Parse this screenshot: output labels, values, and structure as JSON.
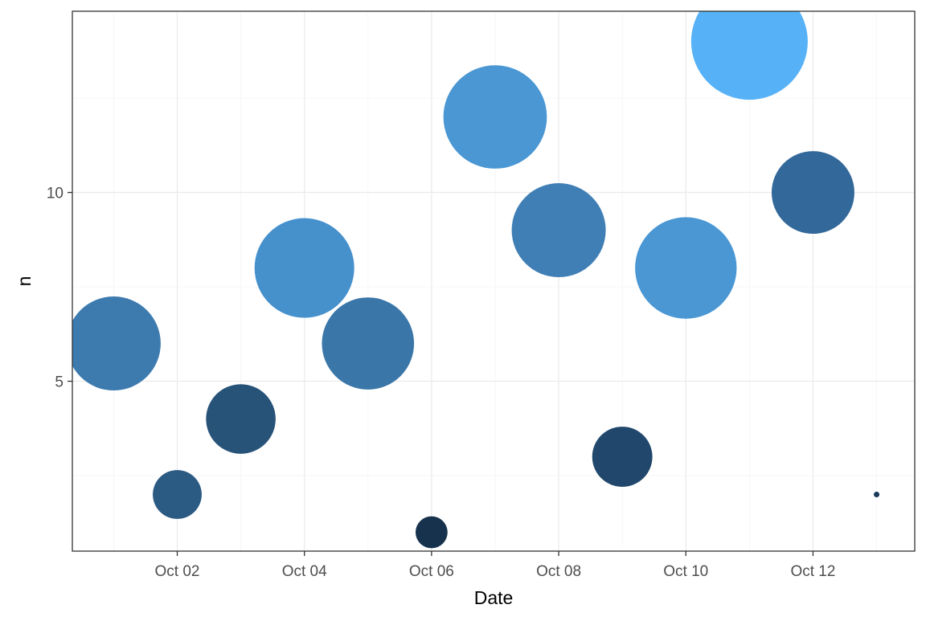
{
  "chart_data": {
    "type": "scatter",
    "title": "",
    "xlabel": "Date",
    "ylabel": "n",
    "xlim": [
      "2023-09-30",
      "2023-10-13"
    ],
    "ylim": [
      0.5,
      14.8
    ],
    "x_ticks": [
      {
        "value": "2023-10-02",
        "label": "Oct 02"
      },
      {
        "value": "2023-10-04",
        "label": "Oct 04"
      },
      {
        "value": "2023-10-06",
        "label": "Oct 06"
      },
      {
        "value": "2023-10-08",
        "label": "Oct 08"
      },
      {
        "value": "2023-10-10",
        "label": "Oct 10"
      },
      {
        "value": "2023-10-12",
        "label": "Oct 12"
      }
    ],
    "y_ticks": [
      {
        "value": 5,
        "label": "5"
      },
      {
        "value": 10,
        "label": "10"
      }
    ],
    "y_minor_ticks": [
      2.5,
      7.5,
      12.5
    ],
    "grid": true,
    "size_encodes": "n",
    "color_encodes": "n",
    "color_low": "#132B43",
    "color_high": "#56B1F7",
    "points": [
      {
        "date": "2023-10-01",
        "n": 6
      },
      {
        "date": "2023-10-02",
        "n": 2
      },
      {
        "date": "2023-10-03",
        "n": 4
      },
      {
        "date": "2023-10-04",
        "n": 8
      },
      {
        "date": "2023-10-05",
        "n": 6
      },
      {
        "date": "2023-10-06",
        "n": 1
      },
      {
        "date": "2023-10-07",
        "n": 12
      },
      {
        "date": "2023-10-08",
        "n": 9
      },
      {
        "date": "2023-10-09",
        "n": 3
      },
      {
        "date": "2023-10-10",
        "n": 8
      },
      {
        "date": "2023-10-11",
        "n": 14
      },
      {
        "date": "2023-10-12",
        "n": 10
      },
      {
        "date": "2023-10-13",
        "n": 2
      }
    ],
    "sizes": [
      5,
      2.6,
      3.7,
      5.3,
      4.9,
      1.7,
      5.5,
      5,
      3.2,
      5.4,
      6.2,
      4.4,
      0.3
    ],
    "colors": [
      "#3D7BAF",
      "#2B5A83",
      "#285379",
      "#4690CC",
      "#3A76A8",
      "#17324D",
      "#4A97D4",
      "#407FB5",
      "#21486C",
      "#4A97D4",
      "#56B1F7",
      "#33689A",
      "#1B3A59"
    ]
  }
}
